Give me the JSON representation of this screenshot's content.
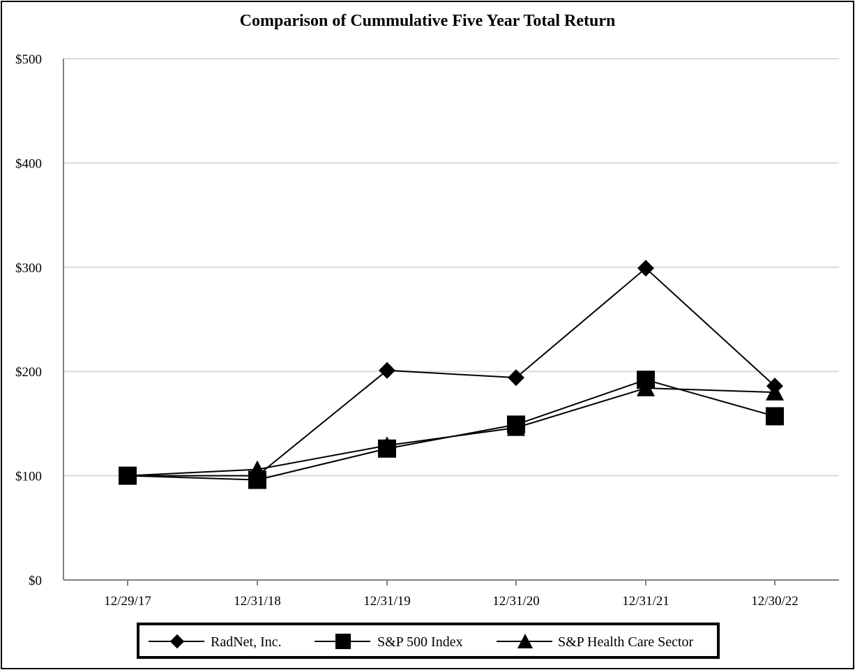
{
  "chart_data": {
    "type": "line",
    "title": "Comparison of Cummulative Five Year Total Return",
    "xlabel": "",
    "ylabel": "",
    "categories": [
      "12/29/17",
      "12/31/18",
      "12/31/19",
      "12/31/20",
      "12/31/21",
      "12/30/22"
    ],
    "ylim": [
      0,
      500
    ],
    "yticks": [
      0,
      100,
      200,
      300,
      400,
      500
    ],
    "ytick_labels": [
      "$0",
      "$100",
      "$200",
      "$300",
      "$400",
      "$500"
    ],
    "grid": true,
    "legend_position": "bottom",
    "series": [
      {
        "name": "RadNet, Inc.",
        "marker": "diamond",
        "values": [
          100,
          100,
          201,
          194,
          299,
          186
        ]
      },
      {
        "name": "S&P 500 Index",
        "marker": "square",
        "values": [
          100,
          96,
          126,
          149,
          192,
          157
        ]
      },
      {
        "name": "S&P Health Care Sector",
        "marker": "triangle",
        "values": [
          100,
          106,
          129,
          146,
          184,
          180
        ]
      }
    ],
    "colors": {
      "line": "#000000",
      "grid": "#d9d9d9",
      "axis": "#808080"
    }
  }
}
